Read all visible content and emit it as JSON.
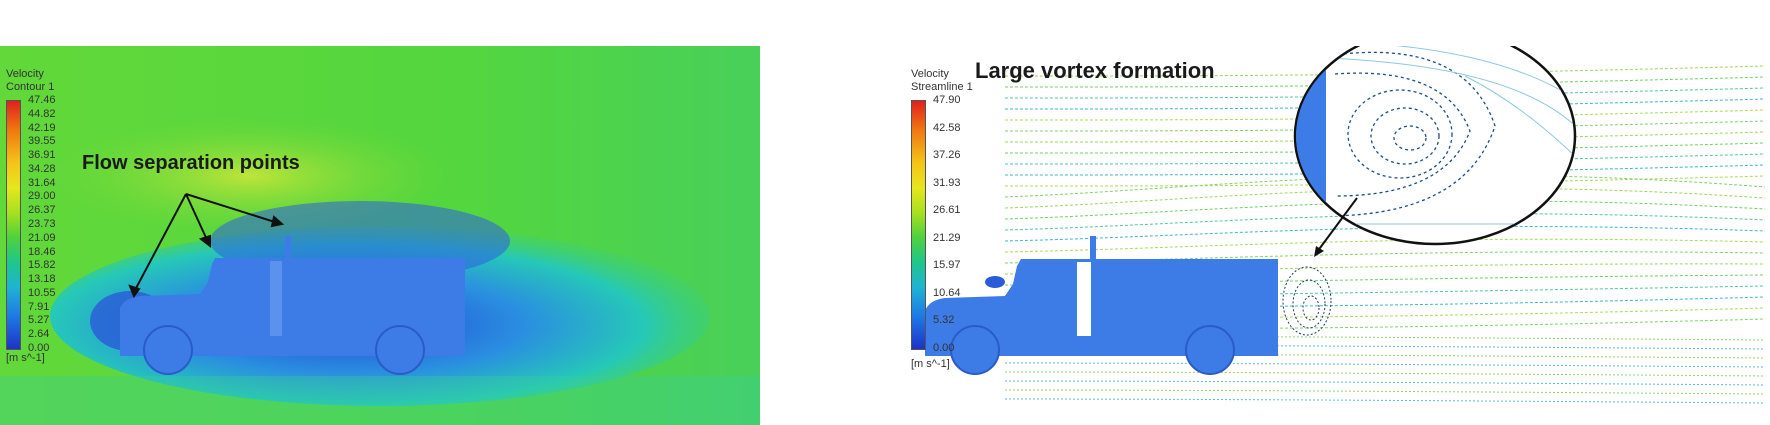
{
  "left_panel": {
    "legend_title_line1": "Velocity",
    "legend_title_line2": "Contour 1",
    "ticks": [
      "47.46",
      "44.82",
      "42.19",
      "39.55",
      "36.91",
      "34.28",
      "31.64",
      "29.00",
      "26.37",
      "23.73",
      "21.09",
      "18.46",
      "15.82",
      "13.18",
      "10.55",
      "7.91",
      "5.27",
      "2.64",
      "0.00"
    ],
    "units": "[m s^-1]",
    "annotation": "Flow separation points"
  },
  "right_panel": {
    "legend_title_line1": "Velocity",
    "legend_title_line2": "Streamline 1",
    "ticks": [
      "47.90",
      "42.58",
      "37.26",
      "31.93",
      "26.61",
      "21.29",
      "15.97",
      "10.64",
      "5.32",
      "0.00"
    ],
    "units": "[m s^-1]",
    "annotation": "Large vortex formation"
  },
  "colors": {
    "truck_body": "#3d7be6",
    "freestream": "#4fd23c",
    "wake_low": "#1e46d2"
  }
}
